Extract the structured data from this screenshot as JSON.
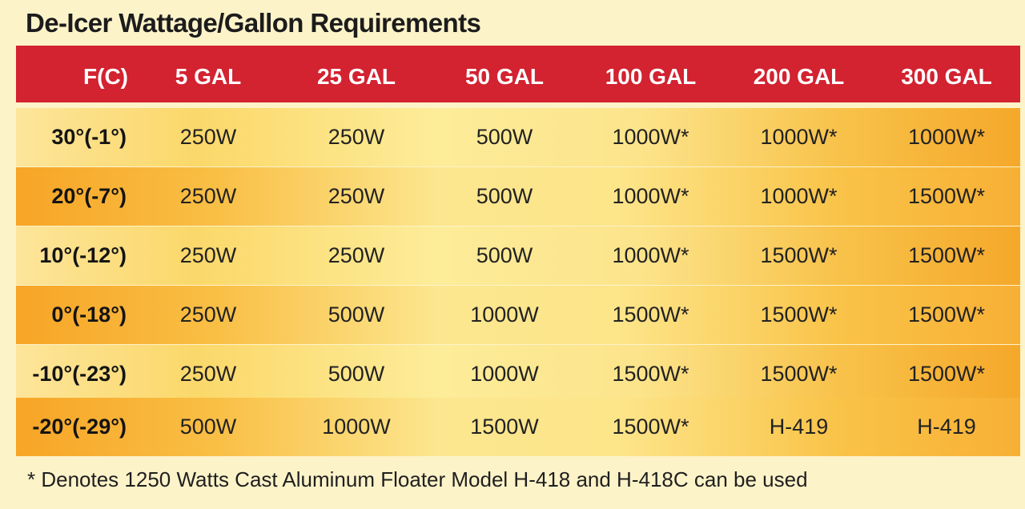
{
  "title": "De-Icer Wattage/Gallon Requirements",
  "colors": {
    "header_bg": "#d32230",
    "row_light": "#fde59a",
    "row_dark": "#f7a526",
    "page_bg": "#fdf3c9"
  },
  "table": {
    "headers": [
      "F(C)",
      "5 GAL",
      "25 GAL",
      "50 GAL",
      "100 GAL",
      "200 GAL",
      "300 GAL"
    ],
    "rows": [
      [
        "30°(-1°)",
        "250W",
        "250W",
        "500W",
        "1000W*",
        "1000W*",
        "1000W*"
      ],
      [
        "20°(-7°)",
        "250W",
        "250W",
        "500W",
        "1000W*",
        "1000W*",
        "1500W*"
      ],
      [
        "10°(-12°)",
        "250W",
        "250W",
        "500W",
        "1000W*",
        "1500W*",
        "1500W*"
      ],
      [
        "0°(-18°)",
        "250W",
        "500W",
        "1000W",
        "1500W*",
        "1500W*",
        "1500W*"
      ],
      [
        "-10°(-23°)",
        "250W",
        "500W",
        "1000W",
        "1500W*",
        "1500W*",
        "1500W*"
      ],
      [
        "-20°(-29°)",
        "500W",
        "1000W",
        "1500W",
        "1500W*",
        "H-419",
        "H-419"
      ]
    ]
  },
  "footnote": "* Denotes 1250 Watts Cast Aluminum Floater Model H-418 and H-418C can be used"
}
